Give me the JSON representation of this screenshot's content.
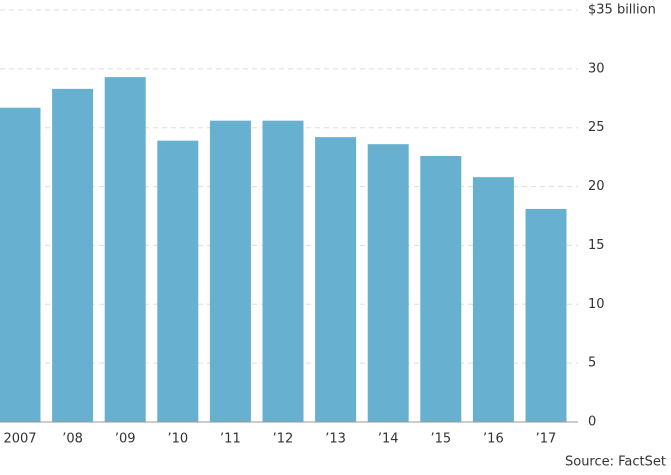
{
  "chart_data": {
    "type": "bar",
    "categories": [
      "2007",
      "’08",
      "’09",
      "’10",
      "’11",
      "’12",
      "’13",
      "’14",
      "’15",
      "’16",
      "’17"
    ],
    "values": [
      26.7,
      28.3,
      29.3,
      23.9,
      25.6,
      25.6,
      24.2,
      23.6,
      22.6,
      20.8,
      18.1
    ],
    "color": "#67b0cf",
    "ylim": [
      0,
      35
    ],
    "yticks": [
      0,
      5,
      10,
      15,
      20,
      25,
      30,
      {
        "value": 35,
        "label": "$35 billion"
      }
    ],
    "grid": true,
    "source": "Source: FactSet"
  }
}
